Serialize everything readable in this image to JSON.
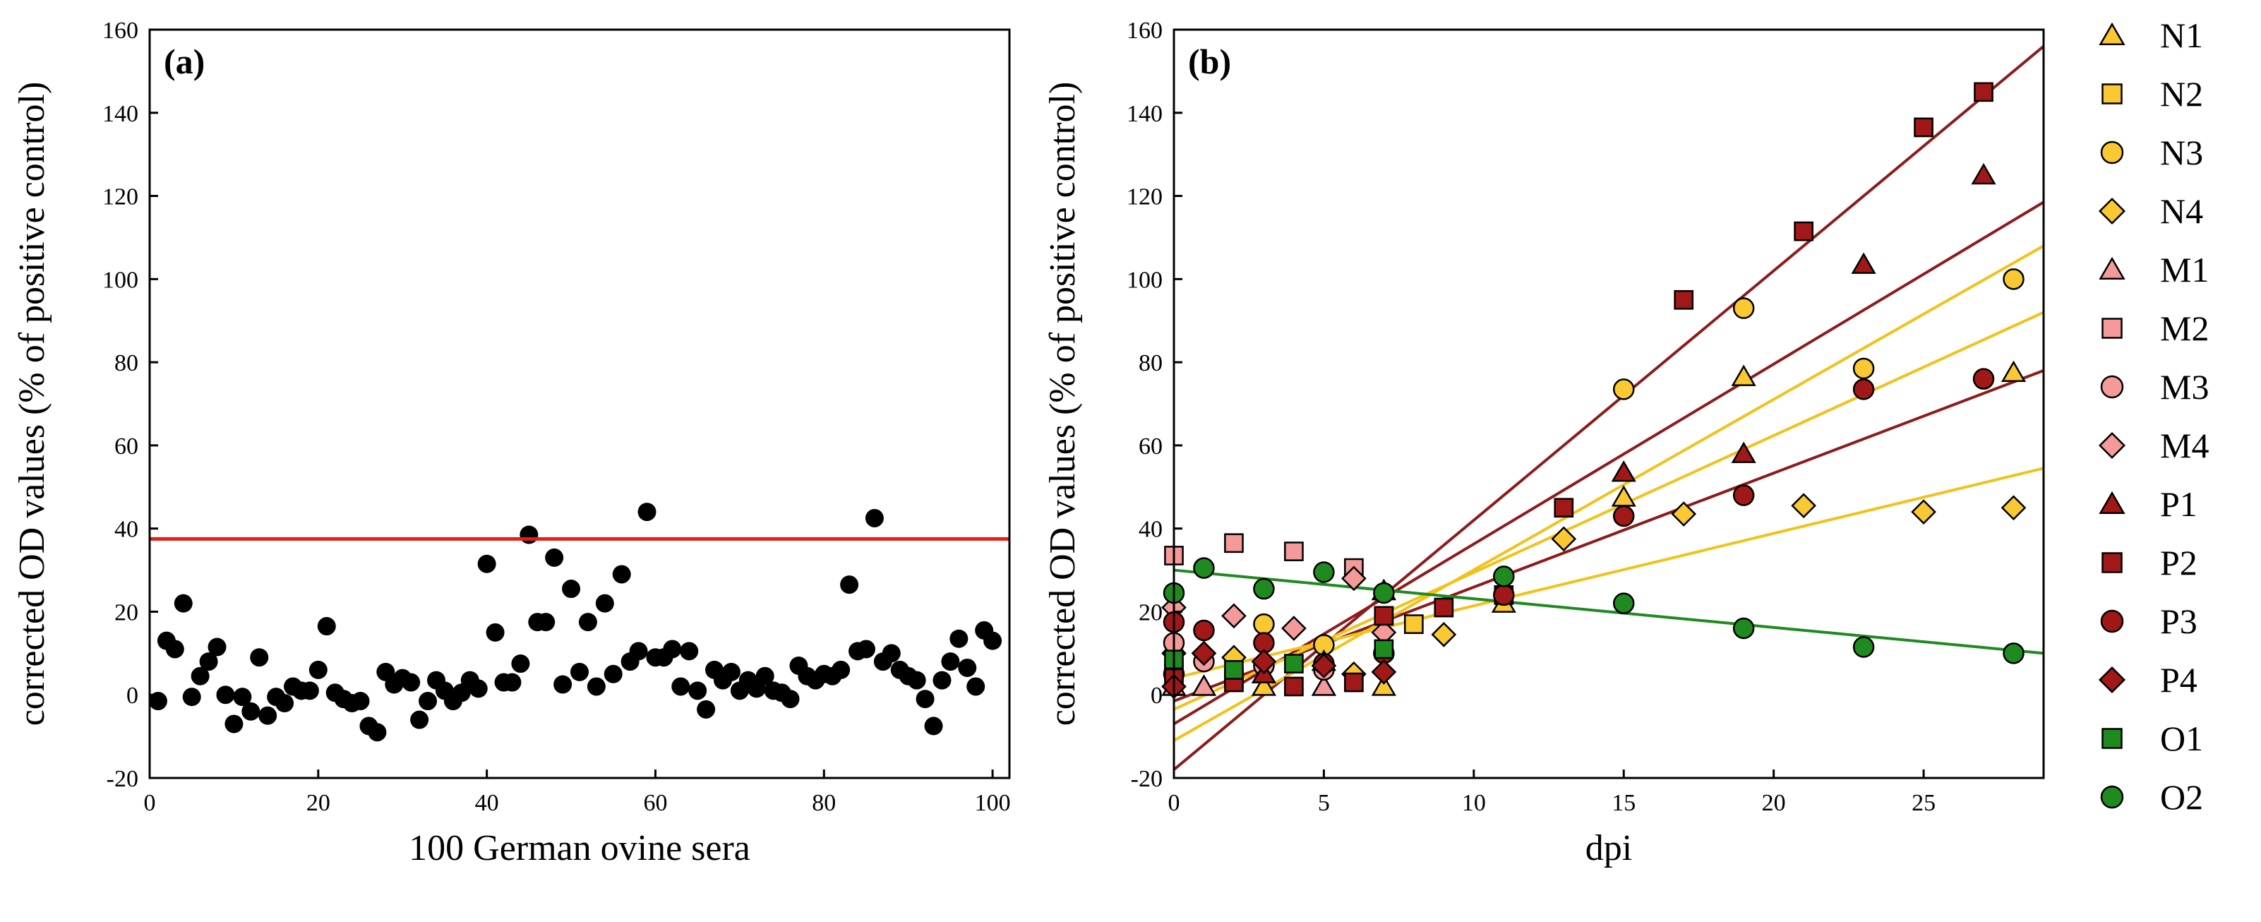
{
  "chart_data": [
    {
      "panel": "(a)",
      "type": "scatter",
      "xlabel": "100 German ovine sera",
      "ylabel": "corrected OD values (% of positive control)",
      "xlim": [
        0,
        102
      ],
      "ylim": [
        -20,
        160
      ],
      "xticks": [
        "0",
        "20",
        "40",
        "60",
        "80",
        "100"
      ],
      "yticks": [
        "-20",
        "0",
        "20",
        "40",
        "60",
        "80",
        "100",
        "120",
        "140",
        "160"
      ],
      "cutoff": 37.5,
      "marker_color": "#000000",
      "cutoff_color": "#e0201b",
      "points": [
        [
          1,
          -1.5
        ],
        [
          2,
          13
        ],
        [
          3,
          11
        ],
        [
          4,
          22
        ],
        [
          5,
          -0.5
        ],
        [
          6,
          4.5
        ],
        [
          7,
          8
        ],
        [
          8,
          11.5
        ],
        [
          9,
          0
        ],
        [
          10,
          -7
        ],
        [
          11,
          -0.5
        ],
        [
          12,
          -4
        ],
        [
          13,
          9
        ],
        [
          14,
          -5
        ],
        [
          15,
          -0.5
        ],
        [
          16,
          -2
        ],
        [
          17,
          2
        ],
        [
          18,
          1
        ],
        [
          19,
          1
        ],
        [
          20,
          6
        ],
        [
          21,
          16.5
        ],
        [
          22,
          0.5
        ],
        [
          23,
          -1
        ],
        [
          24,
          -2
        ],
        [
          25,
          -1.5
        ],
        [
          26,
          -7.5
        ],
        [
          27,
          -9
        ],
        [
          28,
          5.5
        ],
        [
          29,
          2.5
        ],
        [
          30,
          4
        ],
        [
          31,
          3
        ],
        [
          32,
          -6
        ],
        [
          33,
          -1.5
        ],
        [
          34,
          3.5
        ],
        [
          35,
          1
        ],
        [
          36,
          -1.5
        ],
        [
          37,
          0.5
        ],
        [
          38,
          3.5
        ],
        [
          39,
          1.5
        ],
        [
          40,
          31.5
        ],
        [
          41,
          15
        ],
        [
          42,
          3
        ],
        [
          43,
          3
        ],
        [
          44,
          7.5
        ],
        [
          45,
          38.5
        ],
        [
          46,
          17.5
        ],
        [
          47,
          17.5
        ],
        [
          48,
          33
        ],
        [
          49,
          2.5
        ],
        [
          50,
          25.5
        ],
        [
          51,
          5.5
        ],
        [
          52,
          17.5
        ],
        [
          53,
          2
        ],
        [
          54,
          22
        ],
        [
          55,
          5
        ],
        [
          56,
          29
        ],
        [
          57,
          8
        ],
        [
          58,
          10.5
        ],
        [
          59,
          44
        ],
        [
          60,
          9
        ],
        [
          61,
          9
        ],
        [
          62,
          11
        ],
        [
          63,
          2
        ],
        [
          64,
          10.5
        ],
        [
          65,
          1
        ],
        [
          66,
          -3.5
        ],
        [
          67,
          6
        ],
        [
          68,
          3.5
        ],
        [
          69,
          5.5
        ],
        [
          70,
          1
        ],
        [
          71,
          3.5
        ],
        [
          72,
          1.5
        ],
        [
          73,
          4.5
        ],
        [
          74,
          1
        ],
        [
          75,
          0.5
        ],
        [
          76,
          -1
        ],
        [
          77,
          7
        ],
        [
          78,
          4.5
        ],
        [
          79,
          3.5
        ],
        [
          80,
          5
        ],
        [
          81,
          4.5
        ],
        [
          82,
          6
        ],
        [
          83,
          26.5
        ],
        [
          84,
          10.5
        ],
        [
          85,
          11
        ],
        [
          86,
          42.5
        ],
        [
          87,
          8
        ],
        [
          88,
          10
        ],
        [
          89,
          6
        ],
        [
          90,
          4.5
        ],
        [
          91,
          3.5
        ],
        [
          92,
          -1
        ],
        [
          93,
          -7.5
        ],
        [
          94,
          3.5
        ],
        [
          95,
          8
        ],
        [
          96,
          13.5
        ],
        [
          97,
          6.5
        ],
        [
          98,
          2
        ],
        [
          99,
          15.5
        ],
        [
          100,
          13
        ]
      ]
    },
    {
      "panel": "(b)",
      "type": "scatter",
      "xlabel": "dpi",
      "ylabel": "corrected OD values (% of positive control)",
      "xlim": [
        0,
        29
      ],
      "ylim": [
        -20,
        160
      ],
      "xticks": [
        "0",
        "5",
        "10",
        "15",
        "20",
        "25"
      ],
      "yticks": [
        "-20",
        "0",
        "20",
        "40",
        "60",
        "80",
        "100",
        "120",
        "140",
        "160"
      ],
      "series": [
        {
          "name": "N1",
          "marker": "triangle",
          "color": "#f9c833",
          "points": [
            [
              0,
              2
            ],
            [
              1,
              2
            ],
            [
              3,
              2
            ],
            [
              5,
              2
            ],
            [
              7,
              2
            ],
            [
              11,
              22
            ],
            [
              15,
              47.5
            ],
            [
              19,
              76.5
            ],
            [
              28,
              77.5
            ]
          ]
        },
        {
          "name": "N2",
          "marker": "square",
          "color": "#f9c833",
          "points": [
            [
              0,
              6
            ],
            [
              2,
              4
            ],
            [
              8,
              17
            ]
          ]
        },
        {
          "name": "N3",
          "marker": "circle",
          "color": "#f9c833",
          "points": [
            [
              0,
              5
            ],
            [
              3,
              17
            ],
            [
              5,
              12
            ],
            [
              15,
              73.5
            ],
            [
              19,
              93
            ],
            [
              23,
              78.5
            ],
            [
              28,
              100
            ]
          ]
        },
        {
          "name": "N4",
          "marker": "diamond",
          "color": "#f9c833",
          "points": [
            [
              0,
              10
            ],
            [
              2,
              9
            ],
            [
              6,
              5
            ],
            [
              9,
              14.5
            ],
            [
              13,
              37.5
            ],
            [
              17,
              43.5
            ],
            [
              21,
              45.5
            ],
            [
              25,
              44
            ],
            [
              28,
              45
            ]
          ]
        },
        {
          "name": "M1",
          "marker": "triangle",
          "color": "#f49a9a",
          "points": [
            [
              0,
              2
            ],
            [
              1,
              2
            ],
            [
              3,
              5
            ],
            [
              5,
              2
            ],
            [
              7,
              25
            ]
          ]
        },
        {
          "name": "M2",
          "marker": "square",
          "color": "#f49a9a",
          "points": [
            [
              0,
              33.5
            ],
            [
              2,
              36.5
            ],
            [
              4,
              34.5
            ],
            [
              6,
              30.5
            ],
            [
              7,
              19
            ]
          ]
        },
        {
          "name": "M3",
          "marker": "circle",
          "color": "#f49a9a",
          "points": [
            [
              0,
              12.5
            ],
            [
              1,
              8
            ],
            [
              3,
              7
            ],
            [
              5,
              6
            ]
          ]
        },
        {
          "name": "M4",
          "marker": "diamond",
          "color": "#f49a9a",
          "points": [
            [
              0,
              21
            ],
            [
              2,
              19
            ],
            [
              4,
              16
            ],
            [
              6,
              28
            ],
            [
              7,
              15
            ]
          ]
        },
        {
          "name": "P1",
          "marker": "triangle",
          "color": "#a01818",
          "points": [
            [
              3,
              5
            ],
            [
              5,
              8
            ],
            [
              7,
              25
            ],
            [
              15,
              53.5
            ],
            [
              19,
              58
            ],
            [
              23,
              103.5
            ],
            [
              27,
              125
            ]
          ]
        },
        {
          "name": "P2",
          "marker": "square",
          "color": "#a01818",
          "points": [
            [
              0,
              4
            ],
            [
              2,
              3
            ],
            [
              4,
              2
            ],
            [
              6,
              3
            ],
            [
              7,
              19
            ],
            [
              9,
              21
            ],
            [
              11,
              24
            ],
            [
              13,
              45
            ],
            [
              17,
              95
            ],
            [
              21,
              111.5
            ],
            [
              25,
              136.5
            ],
            [
              27,
              145
            ]
          ]
        },
        {
          "name": "P3",
          "marker": "circle",
          "color": "#a01818",
          "points": [
            [
              0,
              17.5
            ],
            [
              1,
              15.5
            ],
            [
              3,
              12.5
            ],
            [
              5,
              7.5
            ],
            [
              7,
              10
            ],
            [
              11,
              24
            ],
            [
              15,
              43
            ],
            [
              19,
              48
            ],
            [
              23,
              73.5
            ],
            [
              27,
              76
            ]
          ]
        },
        {
          "name": "P4",
          "marker": "diamond",
          "color": "#a01818",
          "points": [
            [
              0,
              2
            ],
            [
              1,
              10
            ],
            [
              3,
              8
            ],
            [
              5,
              7
            ],
            [
              7,
              5.5
            ]
          ]
        },
        {
          "name": "O1",
          "marker": "square",
          "color": "#1f8a1f",
          "points": [
            [
              0,
              8.5
            ],
            [
              2,
              6
            ],
            [
              4,
              7.5
            ],
            [
              7,
              11
            ]
          ]
        },
        {
          "name": "O2",
          "marker": "circle",
          "color": "#1f8a1f",
          "points": [
            [
              0,
              24.5
            ],
            [
              1,
              30.5
            ],
            [
              3,
              25.5
            ],
            [
              5,
              29.5
            ],
            [
              7,
              24.5
            ],
            [
              11,
              28.5
            ],
            [
              15,
              22
            ],
            [
              19,
              16
            ],
            [
              23,
              11.5
            ],
            [
              28,
              10
            ]
          ]
        }
      ],
      "regression_lines": [
        {
          "color": "#8e1b1b",
          "from": [
            0,
            -18
          ],
          "to": [
            29,
            156
          ]
        },
        {
          "color": "#8e1b1b",
          "from": [
            0,
            -7
          ],
          "to": [
            29,
            118.5
          ]
        },
        {
          "color": "#8e1b1b",
          "from": [
            0,
            -1.5
          ],
          "to": [
            29,
            78
          ]
        },
        {
          "color": "#f2c21b",
          "from": [
            0,
            -11
          ],
          "to": [
            29,
            108
          ]
        },
        {
          "color": "#f2c21b",
          "from": [
            0,
            -3.5
          ],
          "to": [
            29,
            92
          ]
        },
        {
          "color": "#f2c21b",
          "from": [
            0,
            4
          ],
          "to": [
            29,
            54.5
          ]
        },
        {
          "color": "#1f8a1f",
          "from": [
            0,
            30
          ],
          "to": [
            29,
            10
          ]
        }
      ]
    }
  ]
}
